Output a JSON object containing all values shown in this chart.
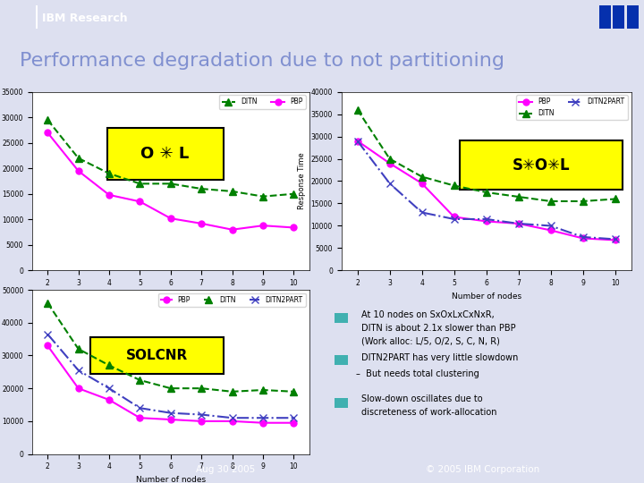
{
  "title": "Performance degradation due to not partitioning",
  "bg_header_color": "#8080c0",
  "bg_slide_color": "#dde0f0",
  "bg_content_color": "#ffffff",
  "footer_text_left": "Aug 30 2005",
  "footer_text_right": "© 2005 IBM Corporation",
  "nodes": [
    2,
    3,
    4,
    5,
    6,
    7,
    8,
    9,
    10
  ],
  "plot1_DITN": [
    29500,
    22000,
    19000,
    17000,
    17000,
    16000,
    15500,
    14500,
    15000
  ],
  "plot1_PBP": [
    27000,
    19500,
    14800,
    13500,
    10200,
    9200,
    8000,
    8800,
    8400
  ],
  "plot2_PBP": [
    29000,
    24000,
    19500,
    12000,
    11000,
    10500,
    9000,
    7200,
    6800
  ],
  "plot2_DITN": [
    36000,
    25000,
    21000,
    19000,
    17500,
    16500,
    15500,
    15500,
    16000
  ],
  "plot2_DITN2PART": [
    29000,
    19500,
    13000,
    11500,
    11500,
    10500,
    10000,
    7500,
    7000
  ],
  "plot3_PBP": [
    33000,
    20000,
    16500,
    11000,
    10500,
    10000,
    10000,
    9500,
    9500
  ],
  "plot3_DITN": [
    46000,
    32000,
    27000,
    22500,
    20000,
    20000,
    19000,
    19500,
    19000
  ],
  "plot3_DITN2PART": [
    36500,
    25500,
    20000,
    14000,
    12500,
    12000,
    11000,
    11000,
    11000
  ],
  "color_DITN": "#008000",
  "color_PBP": "#ff00ff",
  "color_DITN2PART": "#4040c0",
  "bullet_color": "#40b0b0",
  "label1": "O ✳ L",
  "label2": "S✳O✳L",
  "label3": "SOLCNR"
}
